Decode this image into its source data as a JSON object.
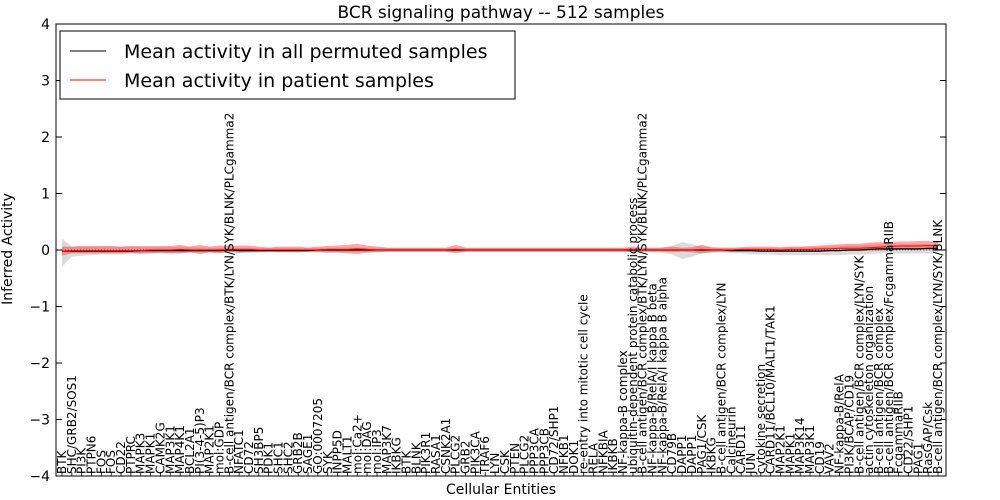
{
  "chart_data": {
    "type": "line",
    "title": "BCR signaling pathway -- 512 samples",
    "xlabel": "Cellular Entities",
    "ylabel": "Inferred Activity",
    "ylim": [
      -4,
      4
    ],
    "yticks": [
      -4,
      -3,
      -2,
      -1,
      0,
      1,
      2,
      3,
      4
    ],
    "grid": false,
    "legend_position": "top-left",
    "categories": [
      "BTK",
      "SHC/GRB2/SOS1",
      "PI3K",
      "PTPN6",
      "FOS",
      "FOS",
      "CD22",
      "PTPRC",
      "MAPK3",
      "MAPK1",
      "CAMK2G",
      "MAP3K1",
      "MAP4K1",
      "BCL2A1",
      "PI(3-4-5)P3",
      "MAP2K1",
      "mol:GDP",
      "B-cell antigen/BCR complex/BTK/LYN/SYK/BLNK/PLCgamma2",
      "NFATC1",
      "CD72",
      "SH3BP5",
      "PDK1",
      "SHC1",
      "SHC2",
      "GRB2B",
      "SAGE1",
      "GO:0007205",
      "SYK",
      "INPP5D",
      "MALT1",
      "mol:Ca2+",
      "mol:DAG",
      "mol:IP3",
      "MAP3K7",
      "IKBKG",
      "BTK",
      "BLNK",
      "PIK3R1",
      "RASA1",
      "CSNK2A1",
      "PLCG2",
      "GRB2",
      "PIK3CA",
      "TRAF6",
      "LYN",
      "CSK",
      "PTEN",
      "PLCG2",
      "PPP3CA",
      "PPP3CB",
      "CD72/SHP1",
      "NFKB1",
      "DOK1",
      "re-entry into mitotic cell cycle",
      "RELA",
      "NFKBIA",
      "IKBKB",
      "NF-kappa-B complex",
      "ubiquitin-dependent protein catabolic process",
      "B-cell antigen/BCR complex/BTK/LYN/SYK/BLNK/PLCgamma2",
      "NF-kappa-B/RelA/I kappa B beta",
      "NF-kappa-B/RelA/I kappa B alpha",
      "CD79B",
      "DAPP1",
      "DAPP1",
      "PAG1/CSK",
      "IKBKG",
      "B-cell antigen/BCR complex/LYN",
      "Calcineurin",
      "CARD11",
      "JUN",
      "cytokine secretion",
      "CARD11/BCL10/MALT1/TAK1",
      "MAP2K1",
      "MAPK1",
      "MAP3K14",
      "MAP3K1",
      "CD19",
      "VAV2",
      "NF-kappa-B/RelA",
      "PI3K/BCAP/CD19",
      "B-cell antigen/BCR complex/LYN/SYK",
      "actin cytoskeleton organization",
      "B-cell antigen/BCR complex",
      "B-cell antigen/BCR complex/FcgammaRIIB",
      "FcgammaRIIB",
      "CD22/SHP1",
      "PAG1",
      "RasGAP/Csk",
      "B-cell antigen/BCR complex/LYN/SYK/BLNK"
    ],
    "series": [
      {
        "name": "Mean activity in all permuted samples",
        "color": "#000000",
        "values": [
          -0.02,
          -0.02,
          -0.02,
          -0.02,
          -0.02,
          -0.02,
          -0.02,
          -0.02,
          -0.01,
          -0.01,
          -0.01,
          -0.01,
          -0.01,
          -0.01,
          -0.01,
          -0.01,
          -0.01,
          0.0,
          -0.01,
          -0.01,
          -0.01,
          -0.01,
          -0.01,
          -0.01,
          -0.01,
          -0.01,
          0.0,
          0.0,
          0.0,
          0.0,
          0.0,
          0.0,
          0.0,
          0.0,
          0.0,
          0.0,
          0.0,
          0.0,
          0.0,
          0.0,
          0.0,
          0.0,
          0.0,
          0.0,
          0.0,
          0.0,
          0.0,
          0.0,
          0.0,
          0.0,
          0.0,
          0.0,
          0.0,
          0.0,
          0.0,
          0.0,
          0.0,
          0.0,
          0.0,
          0.0,
          0.0,
          0.0,
          0.0,
          0.0,
          0.0,
          0.0,
          0.0,
          0.0,
          -0.01,
          -0.01,
          -0.01,
          -0.02,
          -0.02,
          -0.02,
          -0.02,
          -0.02,
          -0.02,
          -0.02,
          -0.01,
          -0.01,
          0.0,
          0.0,
          0.01,
          0.02,
          0.02,
          0.02,
          0.02,
          0.02,
          0.03,
          0.03
        ]
      },
      {
        "name": "Mean activity in patient samples",
        "color": "#ff0000",
        "values": [
          -0.02,
          -0.01,
          -0.01,
          -0.01,
          -0.01,
          -0.01,
          -0.01,
          -0.01,
          -0.01,
          0.0,
          0.0,
          0.0,
          0.01,
          0.0,
          0.0,
          0.0,
          0.0,
          0.01,
          0.01,
          0.01,
          0.0,
          0.0,
          0.0,
          0.0,
          0.0,
          0.0,
          0.0,
          0.01,
          0.01,
          0.01,
          0.02,
          0.01,
          0.0,
          0.0,
          0.0,
          0.0,
          0.0,
          0.0,
          0.0,
          0.0,
          0.01,
          0.0,
          0.0,
          0.0,
          0.0,
          0.0,
          0.0,
          0.0,
          0.0,
          0.0,
          0.0,
          0.0,
          0.0,
          0.0,
          0.0,
          0.0,
          0.0,
          0.0,
          0.01,
          0.0,
          0.0,
          0.0,
          0.0,
          0.0,
          0.0,
          0.01,
          0.0,
          0.0,
          0.0,
          0.01,
          0.01,
          0.01,
          0.01,
          0.0,
          0.01,
          0.01,
          0.01,
          0.02,
          0.02,
          0.03,
          0.03,
          0.03,
          0.04,
          0.05,
          0.06,
          0.07,
          0.07,
          0.07,
          0.08,
          0.07
        ]
      }
    ],
    "bands": [
      {
        "of": "Mean activity in all permuted samples",
        "color": "#888888",
        "lower": [
          -0.3,
          -0.12,
          -0.1,
          -0.09,
          -0.08,
          -0.08,
          -0.08,
          -0.07,
          -0.07,
          -0.06,
          -0.06,
          -0.06,
          -0.06,
          -0.05,
          -0.05,
          -0.05,
          -0.05,
          -0.04,
          -0.05,
          -0.05,
          -0.04,
          -0.04,
          -0.04,
          -0.04,
          -0.04,
          -0.04,
          -0.04,
          -0.04,
          -0.04,
          -0.04,
          -0.04,
          -0.04,
          -0.04,
          -0.04,
          -0.04,
          -0.04,
          -0.04,
          -0.04,
          -0.04,
          -0.04,
          -0.04,
          -0.04,
          -0.04,
          -0.04,
          -0.04,
          -0.04,
          -0.04,
          -0.04,
          -0.04,
          -0.04,
          -0.04,
          -0.04,
          -0.04,
          -0.04,
          -0.04,
          -0.04,
          -0.04,
          -0.04,
          -0.04,
          -0.04,
          -0.04,
          -0.05,
          -0.08,
          -0.16,
          -0.12,
          -0.06,
          -0.05,
          -0.05,
          -0.06,
          -0.06,
          -0.07,
          -0.08,
          -0.08,
          -0.09,
          -0.09,
          -0.09,
          -0.09,
          -0.09,
          -0.09,
          -0.09,
          -0.08,
          -0.08,
          -0.07,
          -0.06,
          -0.06,
          -0.06,
          -0.06,
          -0.06,
          -0.06,
          -0.06
        ],
        "upper": [
          0.2,
          0.06,
          0.06,
          0.06,
          0.06,
          0.06,
          0.06,
          0.06,
          0.05,
          0.05,
          0.05,
          0.05,
          0.05,
          0.05,
          0.04,
          0.04,
          0.04,
          0.04,
          0.04,
          0.04,
          0.04,
          0.04,
          0.04,
          0.04,
          0.04,
          0.04,
          0.04,
          0.04,
          0.04,
          0.04,
          0.04,
          0.04,
          0.04,
          0.04,
          0.04,
          0.04,
          0.04,
          0.04,
          0.04,
          0.04,
          0.04,
          0.04,
          0.04,
          0.04,
          0.04,
          0.04,
          0.04,
          0.04,
          0.04,
          0.04,
          0.04,
          0.04,
          0.04,
          0.04,
          0.04,
          0.04,
          0.04,
          0.04,
          0.04,
          0.04,
          0.04,
          0.05,
          0.07,
          0.14,
          0.1,
          0.06,
          0.05,
          0.04,
          0.04,
          0.04,
          0.04,
          0.04,
          0.04,
          0.04,
          0.05,
          0.05,
          0.05,
          0.06,
          0.06,
          0.07,
          0.08,
          0.08,
          0.09,
          0.1,
          0.1,
          0.1,
          0.1,
          0.1,
          0.1,
          0.1
        ]
      },
      {
        "of": "Mean activity in patient samples",
        "color": "#ff0000",
        "lower": [
          -0.1,
          -0.06,
          -0.06,
          -0.06,
          -0.06,
          -0.06,
          -0.06,
          -0.05,
          -0.06,
          -0.06,
          -0.05,
          -0.06,
          -0.06,
          -0.04,
          -0.07,
          -0.04,
          -0.06,
          -0.04,
          -0.05,
          -0.04,
          -0.04,
          -0.03,
          -0.04,
          -0.04,
          -0.04,
          -0.03,
          -0.04,
          -0.05,
          -0.05,
          -0.06,
          -0.07,
          -0.05,
          -0.04,
          -0.03,
          -0.03,
          -0.03,
          -0.03,
          -0.03,
          -0.03,
          -0.03,
          -0.06,
          -0.03,
          -0.03,
          -0.03,
          -0.03,
          -0.03,
          -0.03,
          -0.03,
          -0.03,
          -0.03,
          -0.03,
          -0.03,
          -0.03,
          -0.03,
          -0.03,
          -0.03,
          -0.03,
          -0.03,
          -0.04,
          -0.03,
          -0.03,
          -0.03,
          -0.04,
          -0.03,
          -0.04,
          -0.06,
          -0.04,
          -0.03,
          -0.03,
          -0.03,
          -0.03,
          -0.03,
          -0.03,
          -0.03,
          -0.03,
          -0.03,
          -0.03,
          -0.03,
          -0.02,
          -0.02,
          -0.02,
          -0.02,
          -0.01,
          -0.01,
          0.0,
          0.0,
          0.0,
          0.0,
          0.0,
          0.0
        ],
        "upper": [
          0.06,
          0.06,
          0.07,
          0.07,
          0.07,
          0.07,
          0.06,
          0.07,
          0.07,
          0.07,
          0.07,
          0.07,
          0.09,
          0.06,
          0.09,
          0.06,
          0.08,
          0.07,
          0.08,
          0.08,
          0.06,
          0.04,
          0.06,
          0.06,
          0.06,
          0.04,
          0.06,
          0.07,
          0.08,
          0.09,
          0.11,
          0.08,
          0.06,
          0.04,
          0.04,
          0.04,
          0.04,
          0.04,
          0.04,
          0.04,
          0.09,
          0.04,
          0.04,
          0.04,
          0.04,
          0.04,
          0.04,
          0.04,
          0.04,
          0.04,
          0.04,
          0.04,
          0.04,
          0.04,
          0.04,
          0.04,
          0.04,
          0.04,
          0.06,
          0.04,
          0.04,
          0.04,
          0.06,
          0.04,
          0.05,
          0.09,
          0.05,
          0.04,
          0.04,
          0.05,
          0.06,
          0.06,
          0.06,
          0.05,
          0.06,
          0.06,
          0.07,
          0.08,
          0.09,
          0.1,
          0.11,
          0.11,
          0.13,
          0.14,
          0.14,
          0.15,
          0.15,
          0.16,
          0.16,
          0.15
        ]
      }
    ]
  }
}
